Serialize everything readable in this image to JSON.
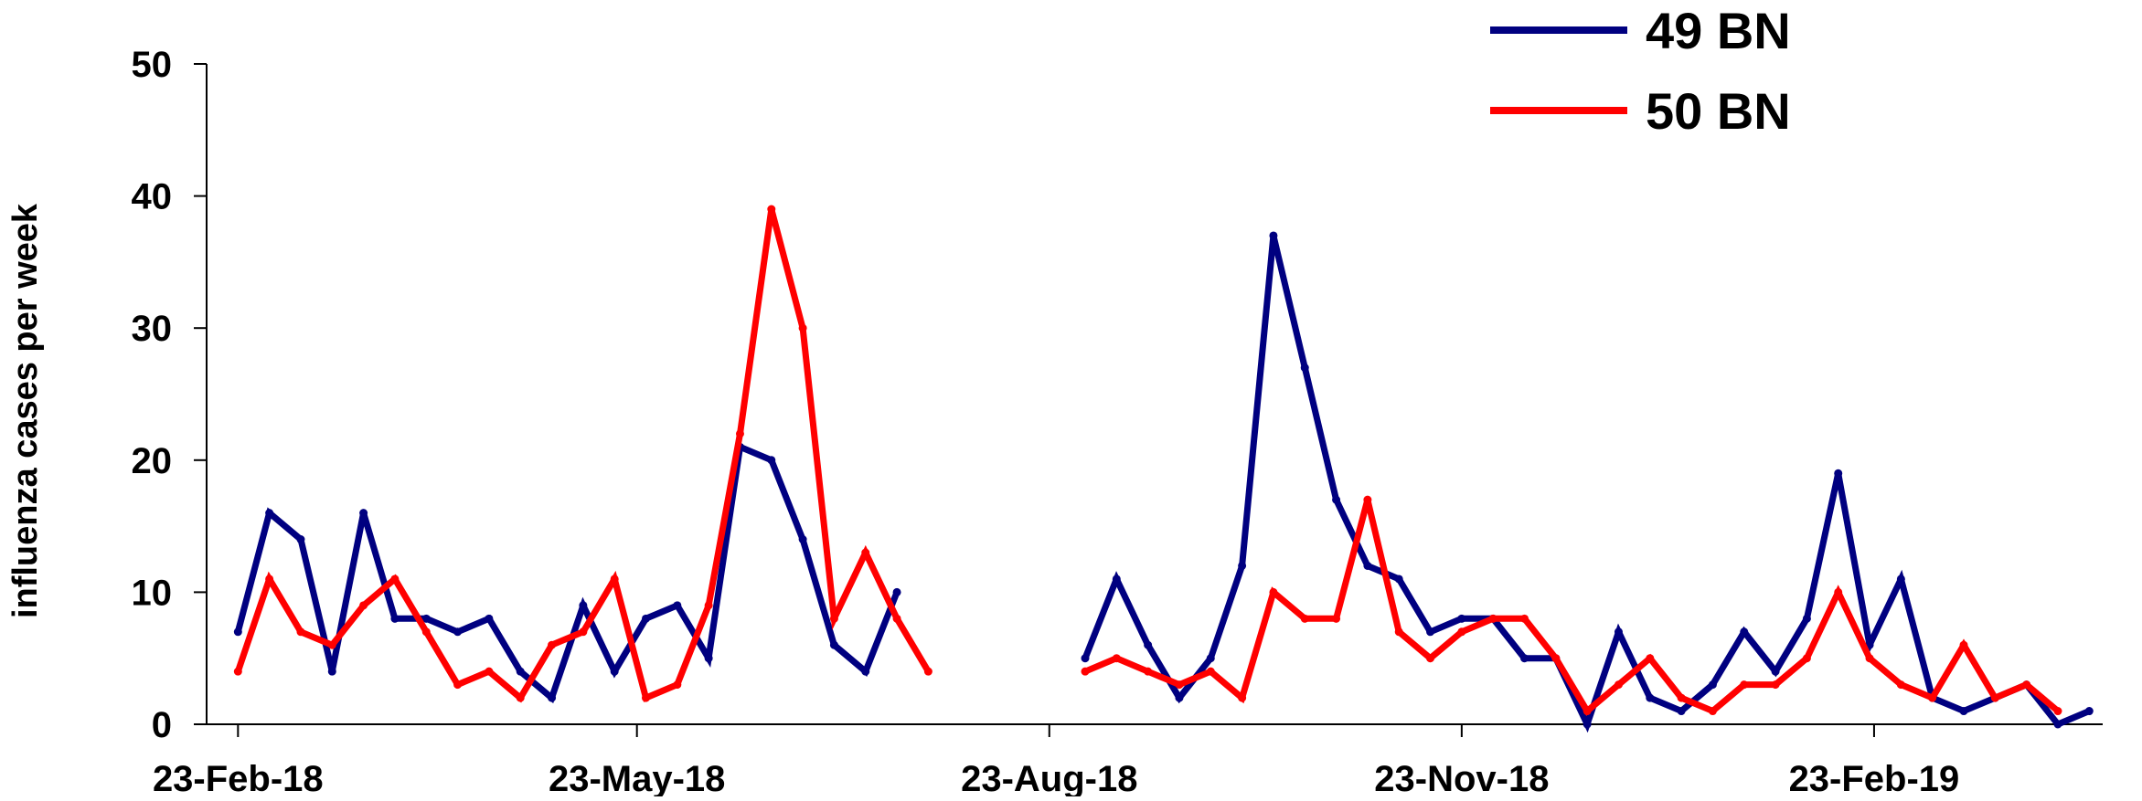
{
  "chart_data": {
    "type": "line",
    "title": "",
    "xlabel": "",
    "ylabel": "influenza cases per week",
    "ylim": [
      0,
      50
    ],
    "yticks": [
      0,
      10,
      20,
      30,
      40,
      50
    ],
    "xlim": [
      "2018-02-16",
      "2019-04-15"
    ],
    "xticks": [
      {
        "date": "2018-02-23",
        "label": "23-Feb-18"
      },
      {
        "date": "2018-05-23",
        "label": "23-May-18"
      },
      {
        "date": "2018-08-23",
        "label": "23-Aug-18"
      },
      {
        "date": "2018-11-23",
        "label": "23-Nov-18"
      },
      {
        "date": "2019-02-23",
        "label": "23-Feb-19"
      }
    ],
    "grid": false,
    "legend_position": "top-right",
    "series": [
      {
        "name": "49 BN",
        "color": "#000080",
        "points": [
          [
            "2018-02-23",
            7
          ],
          [
            "2018-03-02",
            16
          ],
          [
            "2018-03-09",
            14
          ],
          [
            "2018-03-16",
            4
          ],
          [
            "2018-03-23",
            16
          ],
          [
            "2018-03-30",
            8
          ],
          [
            "2018-04-06",
            8
          ],
          [
            "2018-04-13",
            7
          ],
          [
            "2018-04-20",
            8
          ],
          [
            "2018-04-27",
            4
          ],
          [
            "2018-05-04",
            2
          ],
          [
            "2018-05-11",
            9
          ],
          [
            "2018-05-18",
            4
          ],
          [
            "2018-05-25",
            8
          ],
          [
            "2018-06-01",
            9
          ],
          [
            "2018-06-08",
            5
          ],
          [
            "2018-06-15",
            21
          ],
          [
            "2018-06-22",
            20
          ],
          [
            "2018-06-29",
            14
          ],
          [
            "2018-07-06",
            6
          ],
          [
            "2018-07-13",
            4
          ],
          [
            "2018-07-20",
            10
          ],
          [
            "2018-08-31",
            5
          ],
          [
            "2018-09-07",
            11
          ],
          [
            "2018-09-14",
            6
          ],
          [
            "2018-09-21",
            2
          ],
          [
            "2018-09-28",
            5
          ],
          [
            "2018-10-05",
            12
          ],
          [
            "2018-10-12",
            37
          ],
          [
            "2018-10-19",
            27
          ],
          [
            "2018-10-26",
            17
          ],
          [
            "2018-11-02",
            12
          ],
          [
            "2018-11-09",
            11
          ],
          [
            "2018-11-16",
            7
          ],
          [
            "2018-11-23",
            8
          ],
          [
            "2018-11-30",
            8
          ],
          [
            "2018-12-07",
            5
          ],
          [
            "2018-12-14",
            5
          ],
          [
            "2018-12-21",
            0
          ],
          [
            "2018-12-28",
            7
          ],
          [
            "2019-01-04",
            2
          ],
          [
            "2019-01-11",
            1
          ],
          [
            "2019-01-18",
            3
          ],
          [
            "2019-01-25",
            7
          ],
          [
            "2019-02-01",
            4
          ],
          [
            "2019-02-08",
            8
          ],
          [
            "2019-02-15",
            19
          ],
          [
            "2019-02-22",
            6
          ],
          [
            "2019-03-01",
            11
          ],
          [
            "2019-03-08",
            2
          ],
          [
            "2019-03-15",
            1
          ],
          [
            "2019-03-22",
            2
          ],
          [
            "2019-03-29",
            3
          ],
          [
            "2019-04-05",
            0
          ],
          [
            "2019-04-12",
            1
          ]
        ]
      },
      {
        "name": "50 BN",
        "color": "#ff0000",
        "points": [
          [
            "2018-02-23",
            4
          ],
          [
            "2018-03-02",
            11
          ],
          [
            "2018-03-09",
            7
          ],
          [
            "2018-03-16",
            6
          ],
          [
            "2018-03-23",
            9
          ],
          [
            "2018-03-30",
            11
          ],
          [
            "2018-04-06",
            7
          ],
          [
            "2018-04-13",
            3
          ],
          [
            "2018-04-20",
            4
          ],
          [
            "2018-04-27",
            2
          ],
          [
            "2018-05-04",
            6
          ],
          [
            "2018-05-11",
            7
          ],
          [
            "2018-05-18",
            11
          ],
          [
            "2018-05-25",
            2
          ],
          [
            "2018-06-01",
            3
          ],
          [
            "2018-06-08",
            9
          ],
          [
            "2018-06-15",
            22
          ],
          [
            "2018-06-22",
            39
          ],
          [
            "2018-06-29",
            30
          ],
          [
            "2018-07-06",
            8
          ],
          [
            "2018-07-13",
            13
          ],
          [
            "2018-07-20",
            8
          ],
          [
            "2018-07-27",
            4
          ],
          [
            "2018-08-31",
            4
          ],
          [
            "2018-09-07",
            5
          ],
          [
            "2018-09-14",
            4
          ],
          [
            "2018-09-21",
            3
          ],
          [
            "2018-09-28",
            4
          ],
          [
            "2018-10-05",
            2
          ],
          [
            "2018-10-12",
            10
          ],
          [
            "2018-10-19",
            8
          ],
          [
            "2018-10-26",
            8
          ],
          [
            "2018-11-02",
            17
          ],
          [
            "2018-11-09",
            7
          ],
          [
            "2018-11-16",
            5
          ],
          [
            "2018-11-23",
            7
          ],
          [
            "2018-11-30",
            8
          ],
          [
            "2018-12-07",
            8
          ],
          [
            "2018-12-14",
            5
          ],
          [
            "2018-12-21",
            1
          ],
          [
            "2018-12-28",
            3
          ],
          [
            "2019-01-04",
            5
          ],
          [
            "2019-01-11",
            2
          ],
          [
            "2019-01-18",
            1
          ],
          [
            "2019-01-25",
            3
          ],
          [
            "2019-02-01",
            3
          ],
          [
            "2019-02-08",
            5
          ],
          [
            "2019-02-15",
            10
          ],
          [
            "2019-02-22",
            5
          ],
          [
            "2019-03-01",
            3
          ],
          [
            "2019-03-08",
            2
          ],
          [
            "2019-03-15",
            6
          ],
          [
            "2019-03-22",
            2
          ],
          [
            "2019-03-29",
            3
          ],
          [
            "2019-04-05",
            1
          ]
        ]
      }
    ]
  }
}
